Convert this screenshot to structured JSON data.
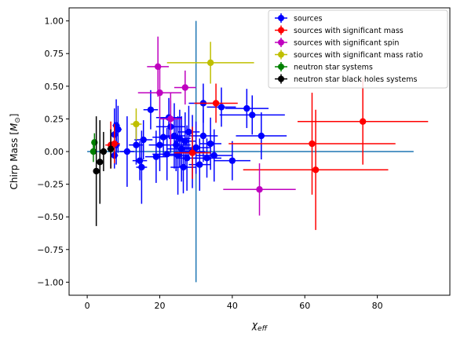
{
  "chart_data": {
    "type": "scatter",
    "xlabel": "χ_eff",
    "xlabel_main": "χ",
    "xlabel_sub": "eff",
    "ylabel": "Chirp Mass [M⊙]",
    "ylabel_main": "Chirp Mass [",
    "ylabel_m": "M",
    "ylabel_sub": "⊙",
    "ylabel_close": "]",
    "xlim": [
      -5,
      100
    ],
    "ylim": [
      -1.1,
      1.1
    ],
    "xticks": [
      0,
      20,
      40,
      60,
      80
    ],
    "xtick_labels": [
      "0",
      "20",
      "40",
      "60",
      "80"
    ],
    "yticks": [
      -1.0,
      -0.75,
      -0.5,
      -0.25,
      0.0,
      0.25,
      0.5,
      0.75,
      1.0
    ],
    "ytick_labels": [
      "−1.00",
      "−0.75",
      "−0.50",
      "−0.25",
      "0.00",
      "0.25",
      "0.50",
      "0.75",
      "1.00"
    ],
    "grid": false,
    "legend_position": "top-right",
    "reference_lines": [
      {
        "x": [
          0,
          90
        ],
        "y": [
          0,
          0
        ],
        "color": "#1f77b4"
      },
      {
        "x": [
          30,
          30
        ],
        "y": [
          -1.0,
          1.0
        ],
        "color": "#1f77b4"
      }
    ],
    "series": [
      {
        "name": "sources",
        "color": "#0000ff",
        "points": [
          {
            "x": 8,
            "y": 0.2,
            "xerr": 1,
            "yerr": 0.2
          },
          {
            "x": 8.5,
            "y": 0.17,
            "xerr": 1,
            "yerr": 0.18
          },
          {
            "x": 7.5,
            "y": 0.13,
            "xerr": 1,
            "yerr": 0.2
          },
          {
            "x": 8,
            "y": 0.05,
            "xerr": 1,
            "yerr": 0.15
          },
          {
            "x": 7.5,
            "y": -0.03,
            "xerr": 1,
            "yerr": 0.1
          },
          {
            "x": 11,
            "y": 0.0,
            "xerr": 2,
            "yerr": 0.27
          },
          {
            "x": 13.5,
            "y": 0.05,
            "xerr": 2,
            "yerr": 0.15
          },
          {
            "x": 15,
            "y": -0.12,
            "xerr": 1.5,
            "yerr": 0.28
          },
          {
            "x": 14.5,
            "y": -0.07,
            "xerr": 2,
            "yerr": 0.15
          },
          {
            "x": 15.5,
            "y": 0.09,
            "xerr": 2.5,
            "yerr": 0.15
          },
          {
            "x": 17.5,
            "y": 0.32,
            "xerr": 2,
            "yerr": 0.15
          },
          {
            "x": 19,
            "y": -0.04,
            "xerr": 3,
            "yerr": 0.2
          },
          {
            "x": 20,
            "y": 0.05,
            "xerr": 3,
            "yerr": 0.2
          },
          {
            "x": 21,
            "y": 0.11,
            "xerr": 3,
            "yerr": 0.15
          },
          {
            "x": 22,
            "y": -0.02,
            "xerr": 4,
            "yerr": 0.2
          },
          {
            "x": 22.5,
            "y": 0.26,
            "xerr": 3.5,
            "yerr": 0.15
          },
          {
            "x": 23,
            "y": 0.19,
            "xerr": 4,
            "yerr": 0.2
          },
          {
            "x": 24,
            "y": 0.12,
            "xerr": 3,
            "yerr": 0.25
          },
          {
            "x": 24.5,
            "y": 0.05,
            "xerr": 4,
            "yerr": 0.2
          },
          {
            "x": 25,
            "y": -0.03,
            "xerr": 3,
            "yerr": 0.3
          },
          {
            "x": 25.5,
            "y": 0.1,
            "xerr": 3,
            "yerr": 0.22
          },
          {
            "x": 26,
            "y": 0.02,
            "xerr": 4,
            "yerr": 0.25
          },
          {
            "x": 26.5,
            "y": -0.12,
            "xerr": 3.5,
            "yerr": 0.2
          },
          {
            "x": 27,
            "y": 0.08,
            "xerr": 3,
            "yerr": 0.22
          },
          {
            "x": 27.5,
            "y": -0.05,
            "xerr": 3,
            "yerr": 0.25
          },
          {
            "x": 28,
            "y": 0.15,
            "xerr": 3,
            "yerr": 0.2
          },
          {
            "x": 29,
            "y": 0.0,
            "xerr": 3.5,
            "yerr": 0.28
          },
          {
            "x": 30,
            "y": 0.03,
            "xerr": 4,
            "yerr": 0.2
          },
          {
            "x": 31,
            "y": -0.1,
            "xerr": 3,
            "yerr": 0.2
          },
          {
            "x": 32,
            "y": 0.12,
            "xerr": 4,
            "yerr": 0.2
          },
          {
            "x": 32,
            "y": 0.37,
            "xerr": 4,
            "yerr": 0.15
          },
          {
            "x": 33,
            "y": -0.05,
            "xerr": 4,
            "yerr": 0.15
          },
          {
            "x": 34,
            "y": 0.06,
            "xerr": 3,
            "yerr": 0.2
          },
          {
            "x": 35,
            "y": -0.03,
            "xerr": 5,
            "yerr": 0.2
          },
          {
            "x": 37,
            "y": 0.34,
            "xerr": 4,
            "yerr": 0.15
          },
          {
            "x": 40,
            "y": -0.07,
            "xerr": 5,
            "yerr": 0.15
          },
          {
            "x": 44,
            "y": 0.33,
            "xerr": 6,
            "yerr": 0.15
          },
          {
            "x": 45.5,
            "y": 0.28,
            "xerr": 9,
            "yerr": 0.15
          },
          {
            "x": 48,
            "y": 0.12,
            "xerr": 7,
            "yerr": 0.18
          }
        ]
      },
      {
        "name": "sources with significant mass",
        "color": "#ff0000",
        "points": [
          {
            "x": 6.5,
            "y": 0.05,
            "xerr": 1.5,
            "yerr": 0.18
          },
          {
            "x": 7.5,
            "y": 0.06,
            "xerr": 1.5,
            "yerr": 0.15
          },
          {
            "x": 29,
            "y": -0.01,
            "xerr": 5,
            "yerr": 0.2
          },
          {
            "x": 35.5,
            "y": 0.37,
            "xerr": 6,
            "yerr": 0.15
          },
          {
            "x": 62,
            "y": 0.06,
            "xerr": 23,
            "yerr": 0.39
          },
          {
            "x": 63,
            "y": -0.14,
            "xerr": 20,
            "yerr": 0.46
          },
          {
            "x": 76,
            "y": 0.23,
            "xerr": 18,
            "yerr": 0.33
          }
        ]
      },
      {
        "name": "sources with significant spin",
        "color": "#bf00bf",
        "points": [
          {
            "x": 19.5,
            "y": 0.65,
            "xerr": 3,
            "yerr": 0.23
          },
          {
            "x": 20,
            "y": 0.45,
            "xerr": 6,
            "yerr": 0.2
          },
          {
            "x": 23,
            "y": 0.25,
            "xerr": 3,
            "yerr": 0.2
          },
          {
            "x": 27,
            "y": 0.49,
            "xerr": 3,
            "yerr": 0.13
          },
          {
            "x": 47.5,
            "y": -0.29,
            "xerr": 10,
            "yerr": 0.2
          }
        ]
      },
      {
        "name": "sources with significant mass ratio",
        "color": "#bfbf00",
        "points": [
          {
            "x": 13.5,
            "y": 0.21,
            "xerr": 1.5,
            "yerr": 0.12
          },
          {
            "x": 34,
            "y": 0.68,
            "xerr": 12,
            "yerr": 0.16
          }
        ]
      },
      {
        "name": "neutron star systems",
        "color": "#008000",
        "points": [
          {
            "x": 1.7,
            "y": 0.0,
            "xerr": 0.8,
            "yerr": 0.08
          },
          {
            "x": 2.0,
            "y": 0.07,
            "xerr": 0.8,
            "yerr": 0.07
          }
        ]
      },
      {
        "name": "neutron star black holes systems",
        "color": "#000000",
        "points": [
          {
            "x": 2.5,
            "y": -0.15,
            "xerr": 0.6,
            "yerr": 0.42
          },
          {
            "x": 3.5,
            "y": -0.08,
            "xerr": 0.6,
            "yerr": 0.32
          },
          {
            "x": 4.5,
            "y": 0.0,
            "xerr": 0.8,
            "yerr": 0.15
          },
          {
            "x": 6.5,
            "y": 0.02,
            "xerr": 1.0,
            "yerr": 0.15
          }
        ]
      }
    ]
  }
}
